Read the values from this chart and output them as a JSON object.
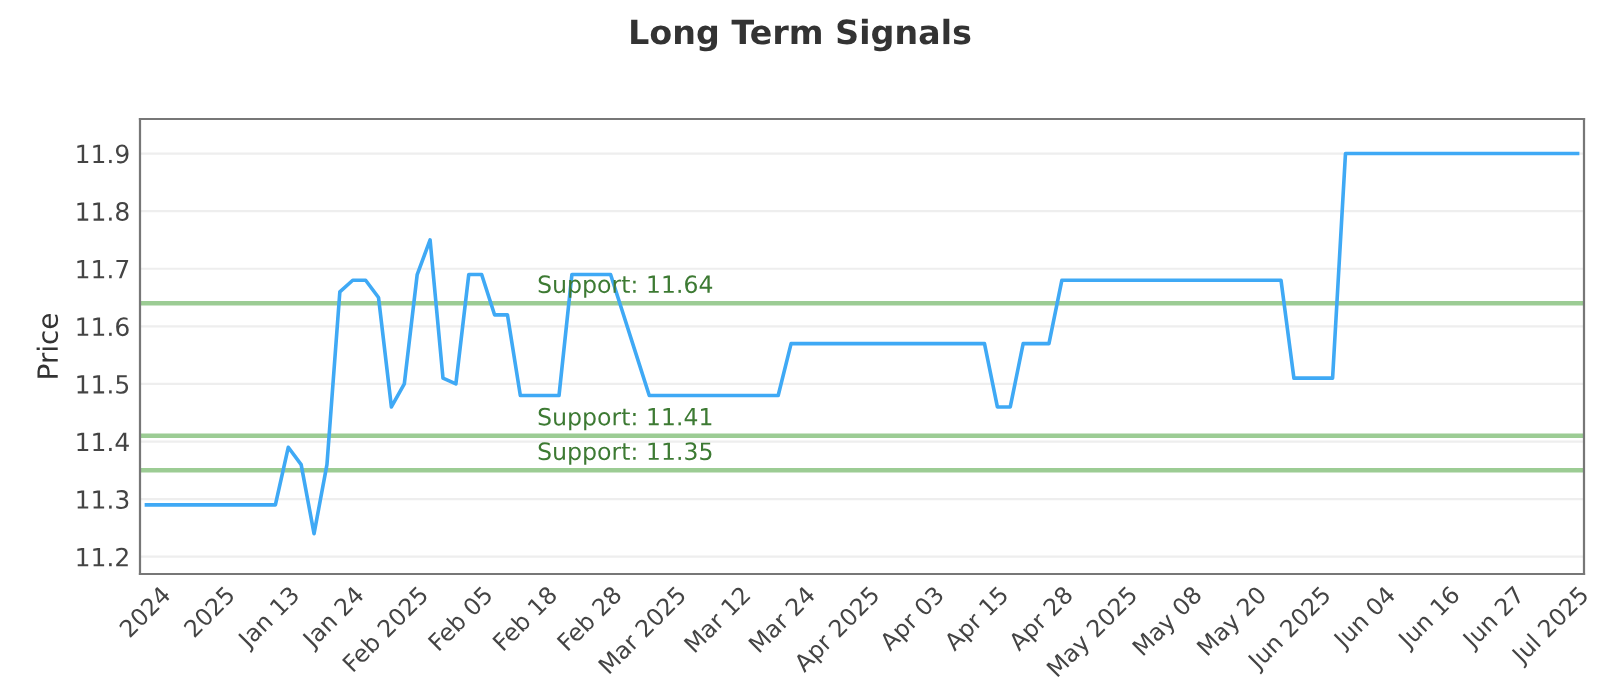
{
  "chart_data": {
    "type": "line",
    "title": "Long Term Signals",
    "ylabel": "Price",
    "categories": [
      null,
      "2024",
      null,
      null,
      null,
      null,
      "2025",
      null,
      null,
      null,
      null,
      "Jan 13",
      null,
      null,
      null,
      null,
      "Jan 24",
      null,
      null,
      null,
      null,
      "Feb 2025",
      null,
      null,
      null,
      null,
      "Feb 05",
      null,
      null,
      null,
      null,
      "Feb 18",
      null,
      null,
      null,
      null,
      "Feb 28",
      null,
      null,
      null,
      null,
      "Mar 2025",
      null,
      null,
      null,
      null,
      "Mar 12",
      null,
      null,
      null,
      null,
      "Mar 24",
      null,
      null,
      null,
      null,
      "Apr 2025",
      null,
      null,
      null,
      null,
      "Apr 03",
      null,
      null,
      null,
      null,
      "Apr 15",
      null,
      null,
      null,
      null,
      "Apr 28",
      null,
      null,
      null,
      null,
      "May 2025",
      null,
      null,
      null,
      null,
      "May 08",
      null,
      null,
      null,
      null,
      "May 20",
      null,
      null,
      null,
      null,
      "Jun 2025",
      null,
      null,
      null,
      null,
      "Jun 04",
      null,
      null,
      null,
      null,
      "Jun 16",
      null,
      null,
      null,
      null,
      "Jun 27",
      null,
      null,
      null,
      null,
      "Jul 2025"
    ],
    "series": [
      {
        "color": "#3fa9f5",
        "values": [
          11.29,
          11.29,
          11.29,
          11.29,
          11.29,
          11.29,
          11.29,
          11.29,
          11.29,
          11.29,
          11.29,
          11.39,
          11.36,
          11.24,
          11.36,
          11.66,
          11.68,
          11.68,
          11.65,
          11.46,
          11.5,
          11.69,
          11.75,
          11.51,
          11.5,
          11.69,
          11.69,
          11.62,
          11.62,
          11.48,
          11.48,
          11.48,
          11.48,
          11.69,
          11.69,
          11.69,
          11.69,
          11.62,
          11.55,
          11.48,
          11.48,
          11.48,
          11.48,
          11.48,
          11.48,
          11.48,
          11.48,
          11.48,
          11.48,
          11.48,
          11.57,
          11.57,
          11.57,
          11.57,
          11.57,
          11.57,
          11.57,
          11.57,
          11.57,
          11.57,
          11.57,
          11.57,
          11.57,
          11.57,
          11.57,
          11.57,
          11.46,
          11.46,
          11.57,
          11.57,
          11.57,
          11.68,
          11.68,
          11.68,
          11.68,
          11.68,
          11.68,
          11.68,
          11.68,
          11.68,
          11.68,
          11.68,
          11.68,
          11.68,
          11.68,
          11.68,
          11.68,
          11.68,
          11.68,
          11.51,
          11.51,
          11.51,
          11.51,
          11.9,
          11.9,
          11.9,
          11.9,
          11.9,
          11.9,
          11.9,
          11.9,
          11.9,
          11.9,
          11.9,
          11.9,
          11.9,
          11.9,
          11.9,
          11.9,
          11.9,
          11.9,
          11.9
        ]
      }
    ],
    "ylim": [
      11.17,
      11.96
    ],
    "yticks": [
      11.2,
      11.3,
      11.4,
      11.5,
      11.6,
      11.7,
      11.8,
      11.9
    ],
    "grid": "y",
    "line_style": "solid",
    "ref_lines": [
      {
        "axis": "y",
        "value": 11.64,
        "label": "Support: 11.64",
        "color": "#9ccc94"
      },
      {
        "axis": "y",
        "value": 11.41,
        "label": "Support: 11.41",
        "color": "#9ccc94"
      },
      {
        "axis": "y",
        "value": 11.35,
        "label": "Support: 11.35",
        "color": "#9ccc94"
      }
    ]
  }
}
